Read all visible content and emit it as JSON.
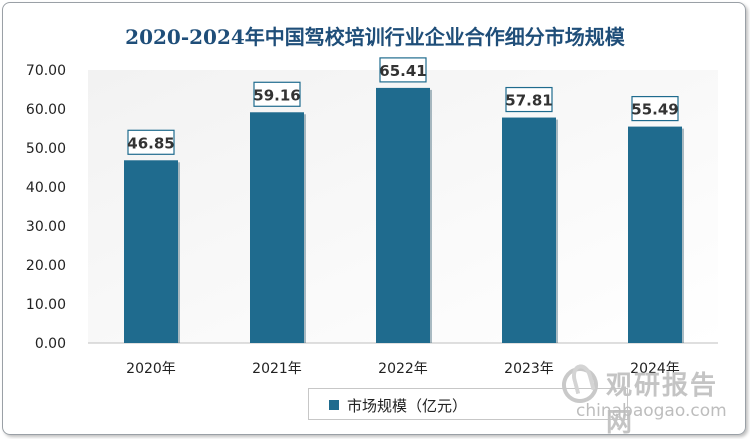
{
  "colors": {
    "bar": "#1f6b8e",
    "bar_shadow": "#0f3e55",
    "plot_bg_start": "#f2f2f2",
    "plot_bg_end": "#ffffff",
    "title": "#1f4e79"
  },
  "chart_data": {
    "type": "bar",
    "title": "2020-2024年中国驾校培训行业企业合作细分市场规模",
    "categories": [
      "2020年",
      "2021年",
      "2022年",
      "2023年",
      "2024年"
    ],
    "series": [
      {
        "name": "市场规模（亿元）",
        "values": [
          46.85,
          59.16,
          65.41,
          57.81,
          55.49
        ]
      }
    ],
    "data_labels": [
      "46.85",
      "59.16",
      "65.41",
      "57.81",
      "55.49"
    ],
    "ylim": [
      0,
      70
    ],
    "yticks": [
      "0.00",
      "10.00",
      "20.00",
      "30.00",
      "40.00",
      "50.00",
      "60.00",
      "70.00"
    ],
    "xlabel": "",
    "ylabel": "",
    "grid": false,
    "legend": "bottom"
  },
  "watermark": {
    "cn": "观研报告网",
    "en": "chinabaogao.com"
  }
}
